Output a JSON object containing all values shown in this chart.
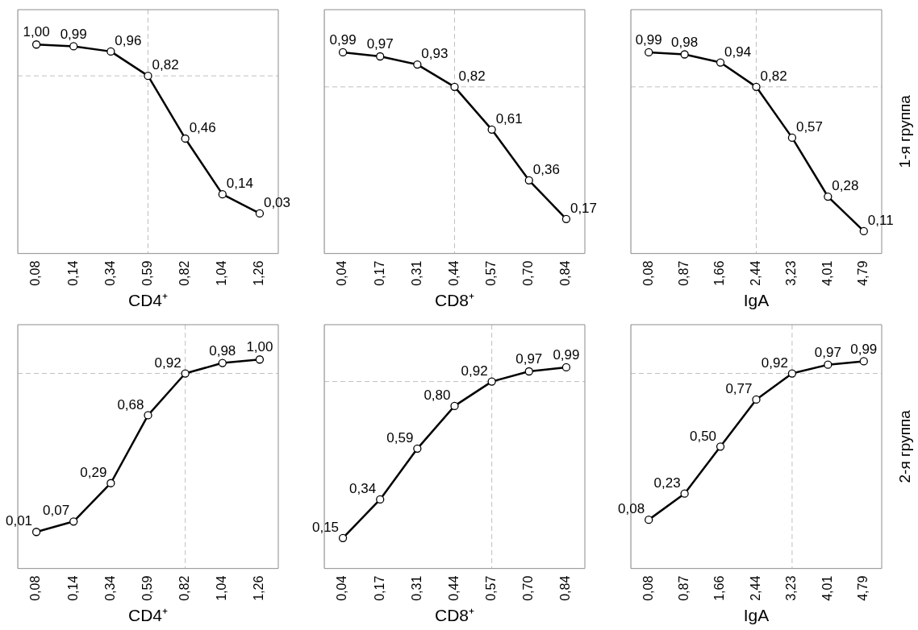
{
  "chart_data": [
    {
      "type": "line",
      "xlabel": "CD4⁺",
      "categories": [
        "0,08",
        "0,14",
        "0,34",
        "0,59",
        "0,82",
        "1,04",
        "1,26"
      ],
      "series": [
        {
          "color": "#000000",
          "values": [
            1.0,
            0.99,
            0.96,
            0.82,
            0.46,
            0.14,
            0.03
          ],
          "value_labels": [
            "1,00",
            "0,99",
            "0,96",
            "0,82",
            "0,46",
            "0,14",
            "0,03"
          ]
        }
      ],
      "marker": "circle",
      "line_style": "solid",
      "tick_labels": "x",
      "grid": false,
      "legend": false,
      "ref_lines": [
        {
          "axis": "y",
          "value": 0.82,
          "color": "#bfbfbf",
          "line_style": "dashed"
        },
        {
          "axis": "x",
          "value": "0,59",
          "color": "#bfbfbf",
          "line_style": "dashed"
        }
      ]
    },
    {
      "type": "line",
      "xlabel": "CD8⁺",
      "categories": [
        "0,04",
        "0,17",
        "0,31",
        "0,44",
        "0,57",
        "0,70",
        "0,84"
      ],
      "series": [
        {
          "color": "#000000",
          "values": [
            0.99,
            0.97,
            0.93,
            0.82,
            0.61,
            0.36,
            0.17
          ],
          "value_labels": [
            "0,99",
            "0,97",
            "0,93",
            "0,82",
            "0,61",
            "0,36",
            "0,17"
          ]
        }
      ],
      "marker": "circle",
      "line_style": "solid",
      "tick_labels": "x",
      "grid": false,
      "legend": false,
      "ref_lines": [
        {
          "axis": "y",
          "value": 0.82,
          "color": "#bfbfbf",
          "line_style": "dashed"
        },
        {
          "axis": "x",
          "value": "0,44",
          "color": "#bfbfbf",
          "line_style": "dashed"
        }
      ]
    },
    {
      "type": "line",
      "xlabel": "IgA",
      "categories": [
        "0,08",
        "0,87",
        "1,66",
        "2,44",
        "3,23",
        "4,01",
        "4,79"
      ],
      "series": [
        {
          "color": "#000000",
          "values": [
            0.99,
            0.98,
            0.94,
            0.82,
            0.57,
            0.28,
            0.11
          ],
          "value_labels": [
            "0,99",
            "0,98",
            "0,94",
            "0,82",
            "0,57",
            "0,28",
            "0,11"
          ]
        }
      ],
      "marker": "circle",
      "line_style": "solid",
      "tick_labels": "x",
      "grid": false,
      "legend": false,
      "annotations": [
        "1-я группа"
      ],
      "ref_lines": [
        {
          "axis": "y",
          "value": 0.82,
          "color": "#bfbfbf",
          "line_style": "dashed"
        },
        {
          "axis": "x",
          "value": "2,44",
          "color": "#bfbfbf",
          "line_style": "dashed"
        }
      ]
    },
    {
      "type": "line",
      "xlabel": "CD4⁺",
      "categories": [
        "0,08",
        "0,14",
        "0,34",
        "0,59",
        "0,82",
        "1,04",
        "1,26"
      ],
      "series": [
        {
          "color": "#000000",
          "values": [
            0.01,
            0.07,
            0.29,
            0.68,
            0.92,
            0.98,
            1.0
          ],
          "value_labels": [
            "0,01",
            "0,07",
            "0,29",
            "0,68",
            "0,92",
            "0,98",
            "1,00"
          ]
        }
      ],
      "marker": "circle",
      "line_style": "solid",
      "tick_labels": "x",
      "grid": false,
      "legend": false,
      "ref_lines": [
        {
          "axis": "y",
          "value": 0.92,
          "color": "#bfbfbf",
          "line_style": "dashed"
        },
        {
          "axis": "x",
          "value": "0,82",
          "color": "#bfbfbf",
          "line_style": "dashed"
        }
      ]
    },
    {
      "type": "line",
      "xlabel": "CD8⁺",
      "categories": [
        "0,04",
        "0,17",
        "0,31",
        "0,44",
        "0,57",
        "0,70",
        "0,84"
      ],
      "series": [
        {
          "color": "#000000",
          "values": [
            0.15,
            0.34,
            0.59,
            0.8,
            0.92,
            0.97,
            0.99
          ],
          "value_labels": [
            "0,15",
            "0,34",
            "0,59",
            "0,80",
            "0,92",
            "0,97",
            "0,99"
          ]
        }
      ],
      "marker": "circle",
      "line_style": "solid",
      "tick_labels": "x",
      "grid": false,
      "legend": false,
      "ref_lines": [
        {
          "axis": "y",
          "value": 0.92,
          "color": "#bfbfbf",
          "line_style": "dashed"
        },
        {
          "axis": "x",
          "value": "0,57",
          "color": "#bfbfbf",
          "line_style": "dashed"
        }
      ]
    },
    {
      "type": "line",
      "xlabel": "IgA",
      "categories": [
        "0,08",
        "0,87",
        "1,66",
        "2,44",
        "3,23",
        "4,01",
        "4,79"
      ],
      "series": [
        {
          "color": "#000000",
          "values": [
            0.08,
            0.23,
            0.5,
            0.77,
            0.92,
            0.97,
            0.99
          ],
          "value_labels": [
            "0,08",
            "0,23",
            "0,50",
            "0,77",
            "0,92",
            "0,97",
            "0,99"
          ]
        }
      ],
      "marker": "circle",
      "line_style": "solid",
      "tick_labels": "x",
      "grid": false,
      "legend": false,
      "annotations": [
        "2-я группа"
      ],
      "ref_lines": [
        {
          "axis": "y",
          "value": 0.92,
          "color": "#bfbfbf",
          "line_style": "dashed"
        },
        {
          "axis": "x",
          "value": "3,23",
          "color": "#bfbfbf",
          "line_style": "dashed"
        }
      ]
    }
  ]
}
